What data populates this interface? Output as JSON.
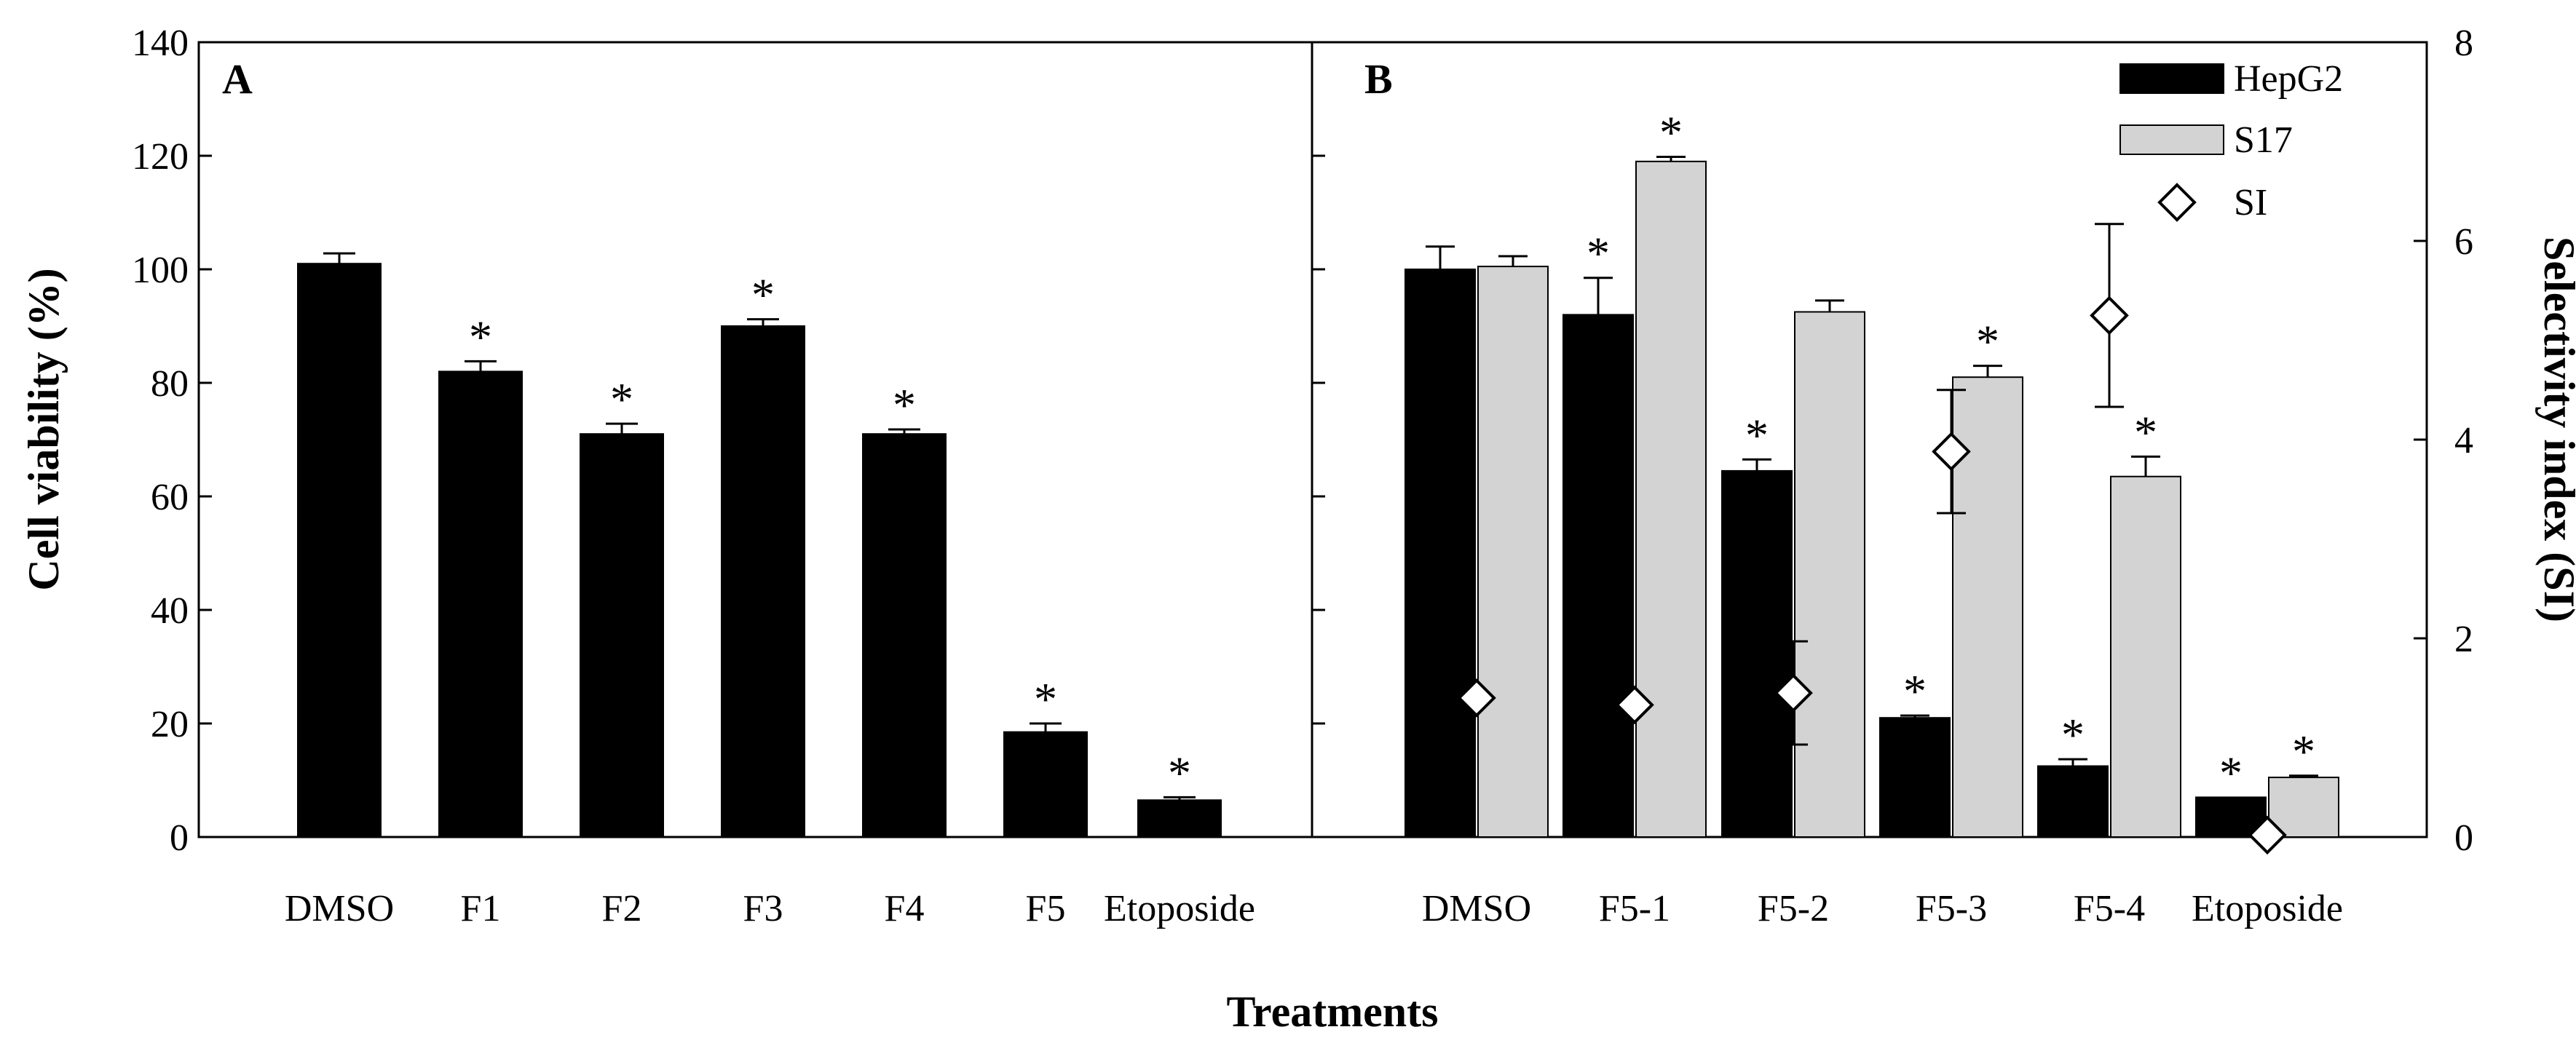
{
  "figure": {
    "xlabel": "Treatments",
    "ylabel_left": "Cell viability (%)",
    "ylabel_right": "Selectivity index (SI)"
  },
  "colors": {
    "hepg2": "#000000",
    "s17": "#d3d3d3",
    "si_marker_fill": "#ffffff",
    "stroke": "#000000"
  },
  "chart_data": [
    {
      "type": "bar",
      "panel": "A",
      "categories": [
        "DMSO",
        "F1",
        "F2",
        "F3",
        "F4",
        "F5",
        "Etoposide"
      ],
      "series": [
        {
          "name": "HepG2",
          "values": [
            101,
            82,
            71,
            90,
            71,
            18.5,
            6.5
          ],
          "errors": [
            1.8,
            1.8,
            1.8,
            1.2,
            0.8,
            1.5,
            0.5
          ],
          "significant": [
            false,
            true,
            true,
            true,
            true,
            true,
            true
          ]
        }
      ],
      "ylabel": "Cell viability (%)",
      "ylim": [
        0,
        140
      ],
      "yticks": [
        0,
        20,
        40,
        60,
        80,
        100,
        120,
        140
      ],
      "significance_marker": "*"
    },
    {
      "type": "bar",
      "panel": "B",
      "categories": [
        "DMSO",
        "F5-1",
        "F5-2",
        "F5-3",
        "F5-4",
        "Etoposide"
      ],
      "series": [
        {
          "name": "HepG2",
          "values": [
            100,
            92,
            64.5,
            21,
            12.5,
            7
          ],
          "errors": [
            4,
            6.5,
            2,
            0.4,
            1.2,
            0
          ],
          "significant": [
            false,
            true,
            true,
            true,
            true,
            true
          ]
        },
        {
          "name": "S17",
          "values": [
            100.5,
            119,
            92.5,
            81,
            63.5,
            10.5
          ],
          "errors": [
            1.8,
            0.8,
            2,
            2,
            3.5,
            0.3
          ],
          "significant": [
            false,
            true,
            false,
            true,
            true,
            true
          ]
        }
      ],
      "secondary_series": {
        "name": "SI",
        "axis": "right",
        "marker": "diamond",
        "values": [
          1.4,
          1.33,
          1.45,
          3.88,
          5.25,
          0.02
        ],
        "errors": [
          0,
          0,
          0.52,
          0.62,
          0.92,
          0
        ]
      },
      "ylim": [
        0,
        140
      ],
      "yticks": [
        0,
        20,
        40,
        60,
        80,
        100,
        120,
        140
      ],
      "y2label": "Selectivity index (SI)",
      "y2lim": [
        0,
        8
      ],
      "y2ticks": [
        0,
        2,
        4,
        6,
        8
      ],
      "legend": [
        "HepG2",
        "S17",
        "SI"
      ],
      "legend_position": "top-right",
      "significance_marker": "*"
    }
  ]
}
